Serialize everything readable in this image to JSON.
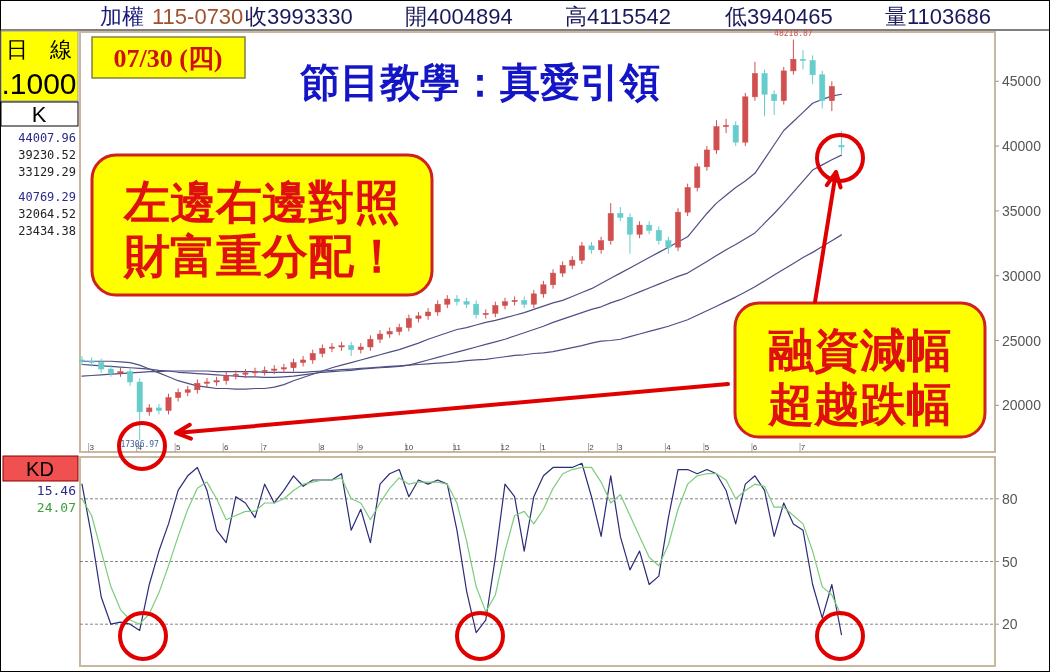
{
  "chart_data": [
    {
      "type": "candlestick",
      "title": "節目教學：真愛引領",
      "annotations": [
        "加權",
        "115-0730",
        "收3993330",
        "開4004894",
        "高4115542",
        "低3940465",
        "量1103686",
        "日　線",
        ".1000",
        "K",
        "44007.96",
        "39230.52",
        "33129.29",
        "40769.29",
        "32064.52",
        "23434.38",
        "07/30 (四)",
        "左邊右邊對照",
        "財富重分配！",
        "融資減幅",
        "超越跌幅",
        {
          "text": "48218.87",
          "y": 48218.87
        },
        {
          "text": "17306.97",
          "y": 17306.97
        }
      ],
      "categories": [
        null,
        "3",
        null,
        null,
        null,
        null,
        "4",
        null,
        null,
        null,
        "5",
        null,
        null,
        null,
        null,
        "6",
        null,
        null,
        null,
        "7",
        null,
        null,
        null,
        null,
        null,
        "8",
        null,
        null,
        null,
        "9",
        null,
        null,
        null,
        null,
        "10",
        null,
        null,
        null,
        null,
        "11",
        null,
        null,
        null,
        null,
        "12",
        null,
        null,
        null,
        "1",
        null,
        null,
        null,
        null,
        "2",
        null,
        null,
        "3",
        null,
        null,
        null,
        null,
        "4",
        null,
        null,
        null,
        "5",
        null,
        null,
        null,
        null,
        "6",
        null,
        null,
        null,
        null,
        "7",
        null,
        null,
        null,
        null
      ],
      "ohlc": [
        [
          23500,
          23800,
          23100,
          23400
        ],
        [
          23400,
          23700,
          23000,
          23300
        ],
        [
          23300,
          23600,
          22500,
          22800
        ],
        [
          22800,
          23100,
          22200,
          22500
        ],
        [
          22500,
          22900,
          22200,
          22600
        ],
        [
          22600,
          22900,
          21500,
          21800
        ],
        [
          21800,
          22100,
          17306.97,
          19500
        ],
        [
          19500,
          20100,
          19200,
          19800
        ],
        [
          19800,
          20100,
          19300,
          19600
        ],
        [
          19600,
          20900,
          19300,
          20600
        ],
        [
          20600,
          21300,
          20300,
          21000
        ],
        [
          21000,
          21500,
          20700,
          21200
        ],
        [
          21200,
          22000,
          20900,
          21700
        ],
        [
          21700,
          22100,
          21400,
          21800
        ],
        [
          21800,
          22200,
          21500,
          21900
        ],
        [
          21900,
          22600,
          21600,
          22300
        ],
        [
          22300,
          22700,
          22000,
          22400
        ],
        [
          22400,
          22800,
          22100,
          22500
        ],
        [
          22500,
          22900,
          22200,
          22600
        ],
        [
          22600,
          23000,
          22300,
          22700
        ],
        [
          22700,
          23100,
          22400,
          22800
        ],
        [
          22800,
          23200,
          22500,
          22900
        ],
        [
          22900,
          23600,
          22600,
          23300
        ],
        [
          23300,
          23800,
          23000,
          23500
        ],
        [
          23500,
          24300,
          23200,
          24000
        ],
        [
          24000,
          24700,
          23700,
          24400
        ],
        [
          24400,
          24800,
          24100,
          24500
        ],
        [
          24500,
          24900,
          24200,
          24600
        ],
        [
          24600,
          24900,
          23800,
          24300
        ],
        [
          24300,
          24800,
          24000,
          24500
        ],
        [
          24500,
          25400,
          24200,
          25100
        ],
        [
          25100,
          25800,
          24800,
          25500
        ],
        [
          25500,
          26000,
          25200,
          25700
        ],
        [
          25700,
          26300,
          25400,
          26000
        ],
        [
          26000,
          27000,
          25700,
          26700
        ],
        [
          26700,
          27200,
          26400,
          26900
        ],
        [
          26900,
          27500,
          26600,
          27200
        ],
        [
          27200,
          28100,
          26900,
          27800
        ],
        [
          27800,
          28500,
          27500,
          28200
        ],
        [
          28200,
          28500,
          27700,
          28000
        ],
        [
          28000,
          28300,
          27500,
          27800
        ],
        [
          27800,
          28100,
          26700,
          27000
        ],
        [
          27000,
          27400,
          26700,
          27100
        ],
        [
          27100,
          28000,
          26800,
          27700
        ],
        [
          27700,
          28300,
          27400,
          28000
        ],
        [
          28000,
          28400,
          27700,
          28100
        ],
        [
          28100,
          28400,
          27500,
          27800
        ],
        [
          27800,
          28900,
          27500,
          28600
        ],
        [
          28600,
          29600,
          28300,
          29300
        ],
        [
          29300,
          30500,
          29000,
          30200
        ],
        [
          30200,
          31100,
          29900,
          30800
        ],
        [
          30800,
          31500,
          30500,
          31200
        ],
        [
          31200,
          32600,
          30900,
          32300
        ],
        [
          32300,
          32600,
          31700,
          32000
        ],
        [
          32000,
          33000,
          31700,
          32700
        ],
        [
          32700,
          35600,
          32400,
          34800
        ],
        [
          34800,
          35300,
          34200,
          34500
        ],
        [
          34500,
          34800,
          31700,
          33200
        ],
        [
          33200,
          34200,
          32900,
          33900
        ],
        [
          33900,
          34200,
          33200,
          33500
        ],
        [
          33500,
          33800,
          32400,
          32700
        ],
        [
          32700,
          33000,
          31700,
          32200
        ],
        [
          32200,
          35200,
          31900,
          34900
        ],
        [
          34900,
          37100,
          34600,
          36800
        ],
        [
          36800,
          38700,
          36500,
          38400
        ],
        [
          38400,
          40000,
          38100,
          39700
        ],
        [
          39700,
          42000,
          39400,
          41500
        ],
        [
          41500,
          42100,
          41000,
          41600
        ],
        [
          41600,
          41900,
          40000,
          40300
        ],
        [
          40300,
          44100,
          40000,
          43800
        ],
        [
          43800,
          46500,
          43500,
          45600
        ],
        [
          45600,
          45900,
          42300,
          44000
        ],
        [
          44000,
          44300,
          42400,
          43500
        ],
        [
          43500,
          46100,
          43200,
          45800
        ],
        [
          45800,
          48218.87,
          45500,
          46700
        ],
        [
          46700,
          47400,
          45900,
          46600
        ],
        [
          46600,
          47000,
          44800,
          45500
        ],
        [
          45500,
          45800,
          42900,
          43500
        ],
        [
          43500,
          45000,
          42700,
          44600
        ],
        [
          40048.94,
          41155.42,
          39404.65,
          39933.3
        ]
      ],
      "colors": [
        "#66cccc",
        "#66cccc",
        "#66cccc",
        "#66cccc",
        "#d05050",
        "#66cccc",
        "#66cccc",
        "#d05050",
        "#66cccc",
        "#d05050",
        "#d05050",
        "#d05050",
        "#d05050",
        "#d05050",
        "#d05050",
        "#d05050",
        "#d05050",
        "#d05050",
        "#d05050",
        "#d05050",
        "#d05050",
        "#d05050",
        "#d05050",
        "#d05050",
        "#d05050",
        "#d05050",
        "#d05050",
        "#d05050",
        "#66cccc",
        "#d05050",
        "#d05050",
        "#d05050",
        "#d05050",
        "#d05050",
        "#d05050",
        "#d05050",
        "#d05050",
        "#d05050",
        "#d05050",
        "#66cccc",
        "#66cccc",
        "#66cccc",
        "#d05050",
        "#d05050",
        "#d05050",
        "#d05050",
        "#66cccc",
        "#d05050",
        "#d05050",
        "#d05050",
        "#d05050",
        "#d05050",
        "#d05050",
        "#66cccc",
        "#d05050",
        "#d05050",
        "#66cccc",
        "#66cccc",
        "#d05050",
        "#66cccc",
        "#66cccc",
        "#66cccc",
        "#d05050",
        "#d05050",
        "#d05050",
        "#d05050",
        "#d05050",
        "#d05050",
        "#66cccc",
        "#d05050",
        "#d05050",
        "#66cccc",
        "#66cccc",
        "#d05050",
        "#d05050",
        "#66cccc",
        "#66cccc",
        "#66cccc",
        "#d05050",
        "#66cccc"
      ],
      "series": [
        {
          "type": "line",
          "color": "#4f4f85",
          "values": [
            23400,
            23400,
            23400,
            23400,
            23350,
            23300,
            23100,
            22800,
            22500,
            22200,
            21900,
            21700,
            21500,
            21400,
            21300,
            21300,
            21250,
            21250,
            21300,
            21300,
            21400,
            21600,
            21900,
            22150,
            22400,
            22650,
            22900,
            23100,
            23300,
            23500,
            23700,
            23900,
            24100,
            24300,
            24550,
            24800,
            25100,
            25350,
            25600,
            25850,
            26000,
            26200,
            26400,
            26550,
            26750,
            26950,
            27150,
            27400,
            27650,
            27900,
            28100,
            28400,
            28700,
            29000,
            29400,
            29800,
            30200,
            30600,
            31000,
            31400,
            31800,
            32200,
            32600,
            33000,
            33900,
            34800,
            35600,
            36200,
            36800,
            37300,
            37900,
            39000,
            40100,
            41200,
            41900,
            42600,
            43300,
            43600,
            43850,
            44000
          ]
        },
        {
          "type": "line",
          "color": "#4f4f85",
          "values": [
            23150,
            23100,
            23050,
            23000,
            22950,
            22900,
            22850,
            22800,
            22700,
            22650,
            22550,
            22500,
            22450,
            22400,
            22350,
            22300,
            22250,
            22200,
            22200,
            22150,
            22150,
            22200,
            22250,
            22350,
            22450,
            22550,
            22600,
            22650,
            22700,
            22800,
            22850,
            22900,
            22950,
            23000,
            23100,
            23300,
            23500,
            23700,
            23900,
            24100,
            24300,
            24500,
            24700,
            24900,
            25100,
            25350,
            25600,
            25850,
            26100,
            26400,
            26650,
            26900,
            27150,
            27400,
            27600,
            27900,
            28150,
            28450,
            28750,
            29050,
            29350,
            29650,
            29950,
            30200,
            30650,
            31100,
            31550,
            32000,
            32400,
            32850,
            33300,
            34050,
            34800,
            35600,
            36450,
            37300,
            38150,
            38550,
            38950,
            39300
          ]
        },
        {
          "type": "line",
          "color": "#4f4f85",
          "values": [
            22250,
            22300,
            22350,
            22400,
            22450,
            22500,
            22550,
            22600,
            22600,
            22650,
            22650,
            22650,
            22650,
            22650,
            22600,
            22600,
            22600,
            22600,
            22600,
            22550,
            22550,
            22550,
            22550,
            22550,
            22600,
            22650,
            22700,
            22750,
            22800,
            22850,
            22900,
            22950,
            23000,
            23050,
            23100,
            23150,
            23200,
            23250,
            23300,
            23350,
            23450,
            23500,
            23550,
            23650,
            23750,
            23850,
            23900,
            24000,
            24050,
            24150,
            24300,
            24450,
            24600,
            24800,
            24950,
            25000,
            25100,
            25300,
            25500,
            25700,
            25900,
            26100,
            26350,
            26600,
            26950,
            27300,
            27650,
            28000,
            28350,
            28750,
            29150,
            29600,
            30050,
            30500,
            30950,
            31400,
            31800,
            32250,
            32700,
            33150
          ]
        }
      ],
      "ylim": [
        16400,
        48800
      ],
      "yticks": [
        20000,
        25000,
        30000,
        35000,
        40000,
        45000
      ]
    },
    {
      "type": "line",
      "annotations": [
        "KD",
        "15.46",
        "24.07"
      ],
      "categories": [
        null,
        null,
        null,
        null,
        null,
        null,
        null,
        null,
        null,
        null,
        null,
        null,
        null,
        null,
        null,
        null,
        null,
        null,
        null,
        null,
        null,
        null,
        null,
        null,
        null,
        null,
        null,
        null,
        null,
        null,
        null,
        null,
        null,
        null,
        null,
        null,
        null,
        null,
        null,
        null,
        null,
        null,
        null,
        null,
        null,
        null,
        null,
        null,
        null,
        null,
        null,
        null,
        null,
        null,
        null,
        null,
        null,
        null,
        null,
        null,
        null,
        null,
        null,
        null,
        null,
        null,
        null,
        null,
        null,
        null,
        null,
        null,
        null,
        null,
        null,
        null,
        null,
        null,
        null,
        null
      ],
      "tick_labels": "y",
      "grid": "y",
      "series": [
        {
          "color": "#2b2b7a",
          "values": [
            87,
            62,
            33,
            20,
            21,
            20,
            17,
            39,
            55,
            68,
            84,
            91,
            95,
            84,
            65,
            59,
            81,
            78,
            71,
            87,
            78,
            84,
            91,
            86,
            89,
            89,
            89,
            92,
            65,
            75,
            59,
            87,
            92,
            94,
            81,
            89,
            87,
            89,
            87,
            65,
            36,
            16,
            22,
            52,
            87,
            81,
            55,
            81,
            91,
            95,
            95,
            95,
            97,
            81,
            62,
            91,
            62,
            46,
            55,
            39,
            43,
            71,
            94,
            94,
            92,
            94,
            92,
            84,
            68,
            87,
            91,
            84,
            62,
            78,
            68,
            65,
            39,
            23,
            39,
            15
          ]
        },
        {
          "color": "#7ccc7c",
          "values": [
            80,
            72,
            55,
            38,
            27,
            22,
            20,
            25,
            35,
            48,
            62,
            75,
            85,
            88,
            80,
            70,
            72,
            74,
            74,
            78,
            78,
            80,
            84,
            87,
            88,
            89,
            89,
            90,
            80,
            78,
            70,
            78,
            85,
            90,
            87,
            88,
            88,
            88,
            87,
            78,
            60,
            38,
            26,
            34,
            55,
            72,
            74,
            68,
            75,
            85,
            92,
            94,
            95,
            95,
            88,
            78,
            82,
            72,
            62,
            52,
            48,
            58,
            75,
            87,
            91,
            92,
            92,
            89,
            80,
            84,
            87,
            86,
            76,
            76,
            72,
            68,
            55,
            38,
            34,
            24
          ]
        }
      ],
      "ylim": [
        0,
        100
      ],
      "yticks": [
        20,
        50,
        80
      ]
    }
  ]
}
